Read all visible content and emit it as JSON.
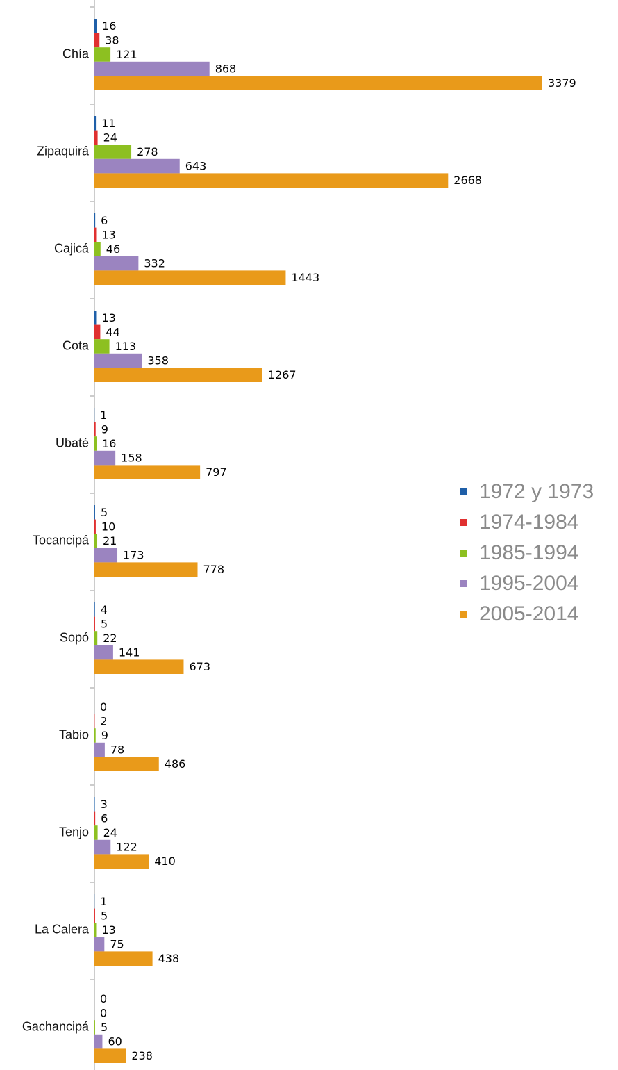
{
  "chart_data": {
    "type": "bar",
    "orientation": "horizontal",
    "categories": [
      "Chía",
      "Zipaquirá",
      "Cajicá",
      "Cota",
      "Ubaté",
      "Tocancipá",
      "Sopó",
      "Tabio",
      "Tenjo",
      "La Calera",
      "Gachancipá"
    ],
    "series": [
      {
        "name": "1972 y 1973",
        "color": "#1f5fa8",
        "values": [
          16,
          11,
          6,
          13,
          1,
          5,
          4,
          0,
          3,
          1,
          0
        ]
      },
      {
        "name": "1974-1984",
        "color": "#e03030",
        "values": [
          38,
          24,
          13,
          44,
          9,
          10,
          5,
          2,
          6,
          5,
          0
        ]
      },
      {
        "name": "1985-1994",
        "color": "#8dc021",
        "values": [
          121,
          278,
          46,
          113,
          16,
          21,
          22,
          9,
          24,
          13,
          5
        ]
      },
      {
        "name": "1995-2004",
        "color": "#9b84c0",
        "values": [
          868,
          643,
          332,
          358,
          158,
          173,
          141,
          78,
          122,
          75,
          60
        ]
      },
      {
        "name": "2005-2014",
        "color": "#e99a1a",
        "values": [
          3379,
          2668,
          1443,
          1267,
          797,
          778,
          673,
          486,
          410,
          438,
          238
        ]
      }
    ],
    "legend": "right"
  }
}
